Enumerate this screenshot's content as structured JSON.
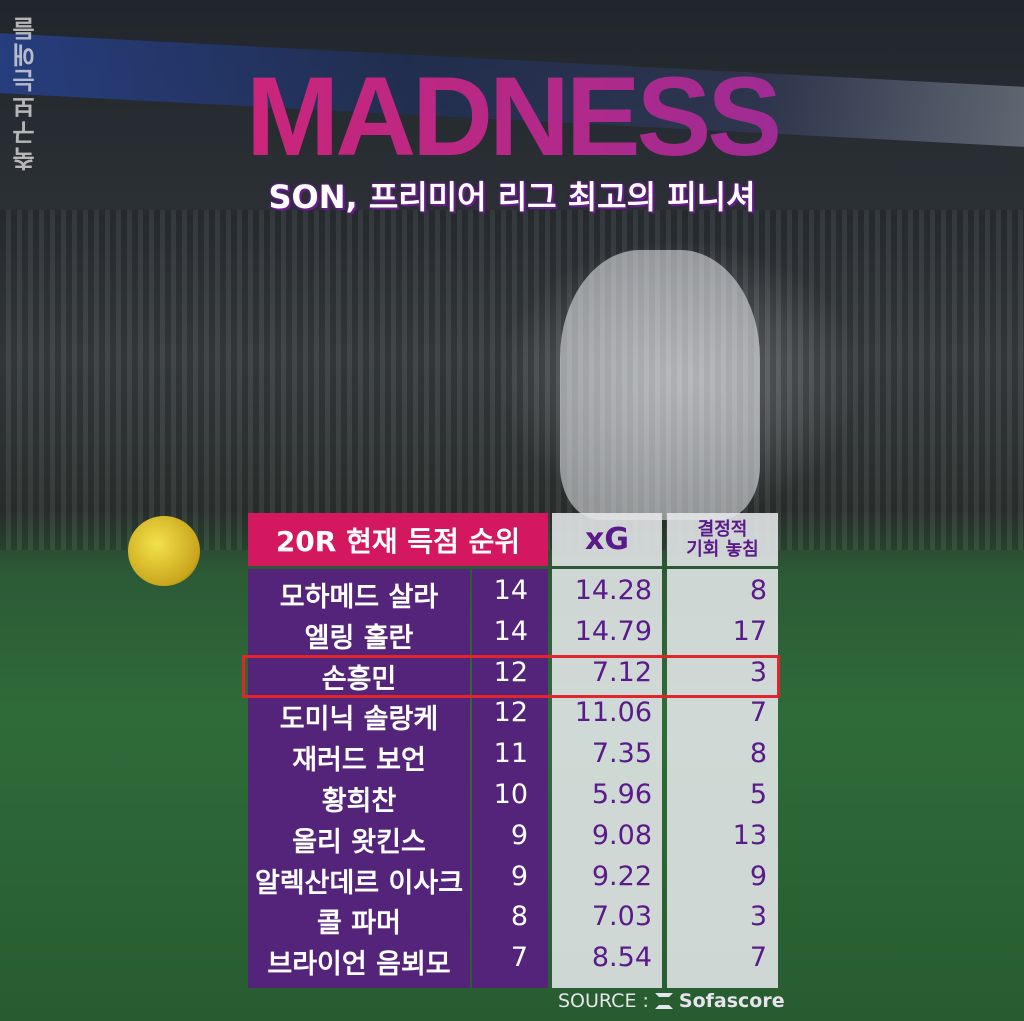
{
  "watermark": "축구보는애들",
  "title": "MADNESS",
  "subtitle": "SON, 프리미어 리그 최고의 피니셔",
  "table": {
    "headers": [
      "20R 현재 득점 순위",
      "xG",
      "결정적\n기회 놓침"
    ],
    "header_missed_line1": "결정적",
    "header_missed_line2": "기회 놓침",
    "highlight_row": "손흥민",
    "rows": [
      {
        "name": "모하메드 살라",
        "goals": "14",
        "xg": "14.28",
        "missed": "8"
      },
      {
        "name": "엘링 홀란",
        "goals": "14",
        "xg": "14.79",
        "missed": "17"
      },
      {
        "name": "손흥민",
        "goals": "12",
        "xg": "7.12",
        "missed": "3"
      },
      {
        "name": "도미닉 솔랑케",
        "goals": "12",
        "xg": "11.06",
        "missed": "7"
      },
      {
        "name": "재러드 보언",
        "goals": "11",
        "xg": "7.35",
        "missed": "8"
      },
      {
        "name": "황희찬",
        "goals": "10",
        "xg": "5.96",
        "missed": "5"
      },
      {
        "name": "올리 왓킨스",
        "goals": "9",
        "xg": "9.08",
        "missed": "13"
      },
      {
        "name": "알렉산데르 이사크",
        "goals": "9",
        "xg": "9.22",
        "missed": "9"
      },
      {
        "name": "콜 파머",
        "goals": "8",
        "xg": "7.03",
        "missed": "3"
      },
      {
        "name": "브라이언 음뵈모",
        "goals": "7",
        "xg": "8.54",
        "missed": "7"
      }
    ]
  },
  "source": {
    "label": "SOURCE :",
    "brand": "Sofascore"
  },
  "colors": {
    "header_pink": "#d3185f",
    "purple": "#581e80",
    "highlight": "#e0262a"
  }
}
